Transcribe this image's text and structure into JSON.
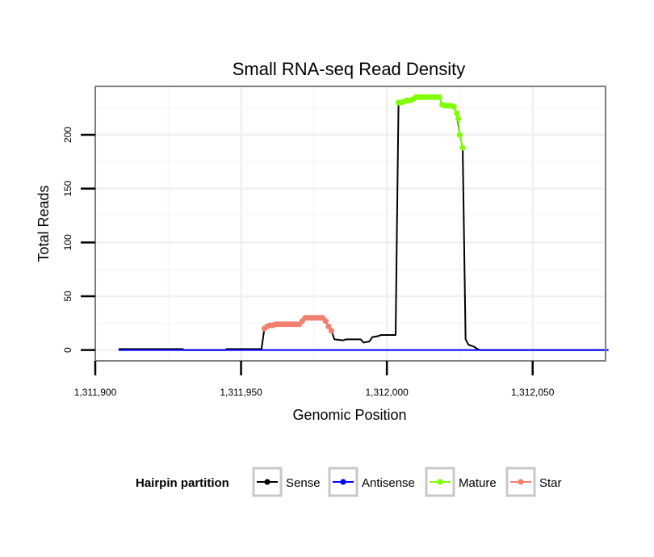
{
  "chart_data": {
    "type": "line",
    "title": "Small RNA-seq Read Density",
    "xlabel": "Genomic Position",
    "ylabel": "Total Reads",
    "xlim": [
      1311900,
      1312075
    ],
    "ylim": [
      -10,
      245
    ],
    "x_ticks": [
      1311900,
      1311950,
      1312000,
      1312050
    ],
    "x_tick_labels": [
      "1,311,900",
      "1,311,950",
      "1,312,000",
      "1,312,050"
    ],
    "y_ticks": [
      0,
      50,
      100,
      150,
      200
    ],
    "y_tick_labels": [
      "0",
      "50",
      "100",
      "150",
      "200"
    ],
    "grid": true,
    "legend": {
      "title": "Hairpin partition",
      "position": "bottom",
      "entries": [
        "Sense",
        "Antisense",
        "Mature",
        "Star"
      ]
    },
    "series": [
      {
        "name": "Sense",
        "color": "#000000",
        "style": "line",
        "points": [
          [
            1311908,
            1
          ],
          [
            1311930,
            1
          ],
          [
            1311930,
            0
          ],
          [
            1311945,
            0
          ],
          [
            1311945,
            1
          ],
          [
            1311957,
            1
          ],
          [
            1311958,
            20
          ],
          [
            1311960,
            23
          ],
          [
            1311970,
            24
          ],
          [
            1311971,
            27
          ],
          [
            1311972,
            30
          ],
          [
            1311978,
            30
          ],
          [
            1311979,
            27
          ],
          [
            1311980,
            22
          ],
          [
            1311981,
            18
          ],
          [
            1311982,
            10
          ],
          [
            1311985,
            9
          ],
          [
            1311986,
            10
          ],
          [
            1311991,
            10
          ],
          [
            1311992,
            7
          ],
          [
            1311994,
            8
          ],
          [
            1311995,
            12
          ],
          [
            1311997,
            13
          ],
          [
            1311998,
            14
          ],
          [
            1312003,
            14
          ],
          [
            1312004,
            230
          ],
          [
            1312008,
            232
          ],
          [
            1312010,
            235
          ],
          [
            1312018,
            235
          ],
          [
            1312019,
            228
          ],
          [
            1312023,
            226
          ],
          [
            1312024,
            220
          ],
          [
            1312025,
            200
          ],
          [
            1312026,
            188
          ],
          [
            1312027,
            10
          ],
          [
            1312028,
            5
          ],
          [
            1312030,
            3
          ],
          [
            1312031,
            1
          ],
          [
            1312032,
            0
          ],
          [
            1312076,
            0
          ]
        ]
      },
      {
        "name": "Antisense",
        "color": "#0000ff",
        "style": "line",
        "points": [
          [
            1311908,
            0
          ],
          [
            1312076,
            0
          ]
        ]
      },
      {
        "name": "Mature",
        "color": "#7fff00",
        "style": "line+points",
        "points": [
          [
            1312004,
            230
          ],
          [
            1312005,
            230
          ],
          [
            1312006,
            231
          ],
          [
            1312007,
            232
          ],
          [
            1312008,
            232
          ],
          [
            1312009,
            233
          ],
          [
            1312010,
            235
          ],
          [
            1312011,
            235
          ],
          [
            1312012,
            235
          ],
          [
            1312013,
            235
          ],
          [
            1312014,
            235
          ],
          [
            1312015,
            235
          ],
          [
            1312016,
            235
          ],
          [
            1312017,
            235
          ],
          [
            1312018,
            235
          ],
          [
            1312019,
            228
          ],
          [
            1312020,
            227
          ],
          [
            1312021,
            227
          ],
          [
            1312022,
            227
          ],
          [
            1312023,
            226
          ],
          [
            1312024,
            220
          ],
          [
            1312024.5,
            215
          ],
          [
            1312025,
            200
          ],
          [
            1312026,
            188
          ]
        ]
      },
      {
        "name": "Star",
        "color": "#f08070",
        "style": "line+points",
        "points": [
          [
            1311958,
            20
          ],
          [
            1311959,
            22
          ],
          [
            1311960,
            23
          ],
          [
            1311961,
            23
          ],
          [
            1311962,
            24
          ],
          [
            1311963,
            24
          ],
          [
            1311964,
            24
          ],
          [
            1311965,
            24
          ],
          [
            1311966,
            24
          ],
          [
            1311967,
            24
          ],
          [
            1311968,
            24
          ],
          [
            1311969,
            24
          ],
          [
            1311970,
            24
          ],
          [
            1311971,
            27
          ],
          [
            1311972,
            30
          ],
          [
            1311973,
            30
          ],
          [
            1311974,
            30
          ],
          [
            1311975,
            30
          ],
          [
            1311976,
            30
          ],
          [
            1311977,
            30
          ],
          [
            1311978,
            30
          ],
          [
            1311979,
            27
          ],
          [
            1311980,
            22
          ],
          [
            1311981,
            18
          ]
        ]
      }
    ]
  }
}
